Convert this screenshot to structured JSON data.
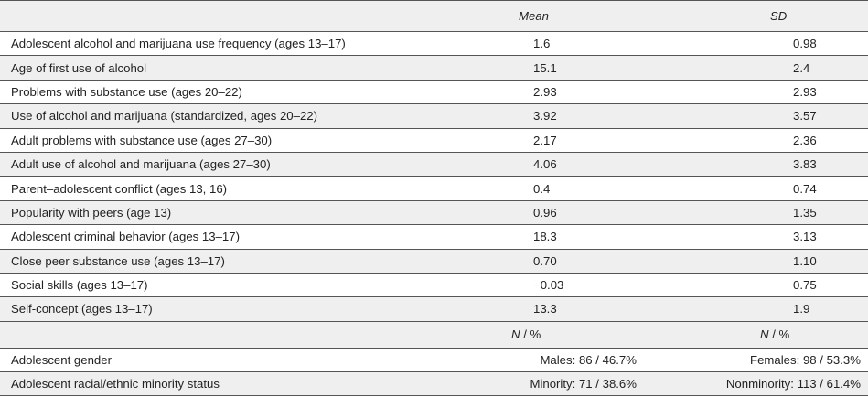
{
  "header": {
    "col_mean": "Mean",
    "col_sd": "SD"
  },
  "rows": [
    {
      "label": "Adolescent alcohol and marijuana use frequency (ages 13–17)",
      "mean": "1.6",
      "sd": "0.98"
    },
    {
      "label": "Age of first use of alcohol",
      "mean": "15.1",
      "sd": "2.4"
    },
    {
      "label": "Problems with substance use (ages 20–22)",
      "mean": "2.93",
      "sd": "2.93"
    },
    {
      "label": "Use of alcohol and marijuana (standardized, ages 20–22)",
      "mean": "3.92",
      "sd": "3.57"
    },
    {
      "label": "Adult problems with substance use (ages 27–30)",
      "mean": "2.17",
      "sd": "2.36"
    },
    {
      "label": "Adult use of alcohol and marijuana (ages 27–30)",
      "mean": "4.06",
      "sd": "3.83"
    },
    {
      "label": "Parent–adolescent conflict (ages 13, 16)",
      "mean": "0.4",
      "sd": "0.74"
    },
    {
      "label": "Popularity with peers (age 13)",
      "mean": "0.96",
      "sd": "1.35"
    },
    {
      "label": "Adolescent criminal behavior (ages 13–17)",
      "mean": "18.3",
      "sd": "3.13"
    },
    {
      "label": "Close peer substance use (ages 13–17)",
      "mean": "0.70",
      "sd": "1.10"
    },
    {
      "label": "Social skills (ages 13–17)",
      "mean": "−0.03",
      "sd": "0.75"
    },
    {
      "label": "Self-concept (ages 13–17)",
      "mean": "13.3",
      "sd": "1.9"
    }
  ],
  "subheader": {
    "n": "N",
    "sep": " / ",
    "pct": "%"
  },
  "categorical": [
    {
      "label": "Adolescent gender",
      "col1": "Males: 86 / 46.7%",
      "col2": "Females: 98 / 53.3%"
    },
    {
      "label": "Adolescent racial/ethnic minority status",
      "col1": "Minority: 71 / 38.6%",
      "col2": "Nonminority: 113 / 61.4%"
    }
  ]
}
